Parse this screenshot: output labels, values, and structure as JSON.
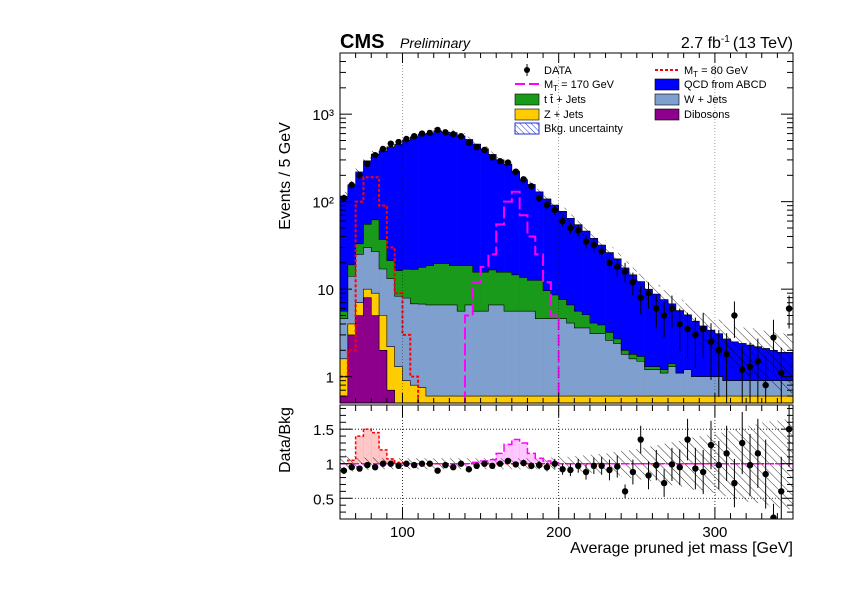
{
  "header": {
    "experiment": "CMS",
    "status": "Preliminary",
    "luminosity_base": "2.7 fb",
    "luminosity_exp": "-1",
    "energy": "(13 TeV)"
  },
  "colors": {
    "qcd": "#0000ff",
    "wjets": "#7f9fcf",
    "ttbar": "#1a9a1a",
    "zjets": "#ffcc00",
    "dibosons": "#8c008c",
    "mt170": "#ff00ff",
    "mt80": "#ff0000",
    "data": "#000000"
  },
  "legend": [
    {
      "key": "data",
      "label": "DATA",
      "style": "marker"
    },
    {
      "key": "mt80",
      "label": "M_T = 80 GeV",
      "style": "dashed"
    },
    {
      "key": "mt170",
      "label": "M_T = 170 GeV",
      "style": "longdash"
    },
    {
      "key": "qcd",
      "label": "QCD from ABCD",
      "style": "fill"
    },
    {
      "key": "ttbar",
      "label": "t t̄ + Jets",
      "style": "fill"
    },
    {
      "key": "wjets",
      "label": "W + Jets",
      "style": "fill"
    },
    {
      "key": "zjets",
      "label": "Z + Jets",
      "style": "fill"
    },
    {
      "key": "dibosons",
      "label": "Dibosons",
      "style": "fill"
    },
    {
      "key": "unc",
      "label": "Bkg. uncertainty",
      "style": "hatch"
    }
  ],
  "chart_data": [
    {
      "type": "histogram",
      "ylabel": "Events / 5 GeV",
      "xlim": [
        60,
        350
      ],
      "ylim": [
        0.5,
        5000
      ],
      "yscale": "log",
      "yticks": [
        1,
        10,
        100,
        1000
      ],
      "ytick_labels": [
        "1",
        "10",
        "10²",
        "10³"
      ],
      "bin_edges": [
        60,
        65,
        70,
        75,
        80,
        85,
        90,
        95,
        100,
        105,
        110,
        115,
        120,
        125,
        130,
        135,
        140,
        145,
        150,
        155,
        160,
        165,
        170,
        175,
        180,
        185,
        190,
        195,
        200,
        205,
        210,
        215,
        220,
        225,
        230,
        235,
        240,
        245,
        250,
        255,
        260,
        265,
        270,
        275,
        280,
        285,
        290,
        295,
        300,
        305,
        310,
        315,
        320,
        325,
        330,
        335,
        340,
        345,
        350
      ],
      "stack": [
        {
          "key": "dibosons",
          "name": "Dibosons",
          "values": [
            0.6,
            3,
            5,
            8,
            5,
            2,
            0.7,
            0.5,
            0.4,
            0.4,
            0.4,
            0.3,
            0.3,
            0.3,
            0.3,
            0.3,
            0.3,
            0.3,
            0.3,
            0.3,
            0.3,
            0.3,
            0.3,
            0.3,
            0.3,
            0.3,
            0.3,
            0.3,
            0.3,
            0.3,
            0.3,
            0.3,
            0.3,
            0.3,
            0.3,
            0.3,
            0.3,
            0.3,
            0.3,
            0.3,
            0.3,
            0.3,
            0.3,
            0.3,
            0.3,
            0.3,
            0.3,
            0.3,
            0.3,
            0.3,
            0.3,
            0.3,
            0.3,
            0.3,
            0.3,
            0.3,
            0.3,
            0.3
          ]
        },
        {
          "key": "zjets",
          "name": "Z + Jets",
          "values": [
            1,
            1,
            2,
            2,
            4,
            3,
            1.5,
            0.8,
            0.5,
            0.4,
            0.35,
            0.3,
            0.3,
            0.3,
            0.3,
            0.3,
            0.3,
            0.3,
            0.3,
            0.3,
            0.3,
            0.3,
            0.3,
            0.3,
            0.3,
            0.3,
            0.3,
            0.3,
            0.3,
            0.3,
            0.3,
            0.3,
            0.3,
            0.3,
            0.3,
            0.3,
            0.3,
            0.3,
            0.3,
            0.3,
            0.3,
            0.3,
            0.3,
            0.3,
            0.3,
            0.3,
            0.3,
            0.3,
            0.3,
            0.3,
            0.3,
            0.3,
            0.3,
            0.3,
            0.3,
            0.3,
            0.3,
            0.3
          ]
        },
        {
          "key": "wjets",
          "name": "W + Jets",
          "values": [
            3,
            10,
            18,
            20,
            18,
            12,
            11,
            7,
            7,
            6,
            6,
            6,
            6,
            6,
            6,
            5,
            6,
            5,
            5,
            6,
            6,
            5,
            5,
            5,
            5,
            4,
            4,
            4,
            4,
            3.5,
            3,
            3,
            2.5,
            2.5,
            2,
            1.8,
            1.2,
            1,
            0.9,
            0.6,
            0.6,
            0.5,
            0.7,
            0.5,
            0.6,
            0.4,
            0.4,
            0.4,
            0.4,
            0.3,
            0.3,
            0.3,
            0.3,
            0.3,
            0.3,
            0.3,
            0.3,
            0.3
          ]
        },
        {
          "key": "ttbar",
          "name": "t t̄ + Jets",
          "values": [
            1,
            5,
            8,
            25,
            35,
            20,
            8,
            8,
            9,
            10,
            11,
            12,
            13,
            13,
            12,
            13,
            12,
            10,
            10,
            10,
            9,
            10,
            9,
            8,
            7,
            8,
            5,
            4,
            3,
            2.5,
            2,
            1.5,
            1,
            0.8,
            0.6,
            0.3,
            0.2,
            0.2,
            0.2,
            0.1,
            0.1,
            0.1,
            0.1,
            0,
            0,
            0,
            0,
            0,
            0,
            0,
            0,
            0,
            0,
            0,
            0,
            0,
            0,
            0
          ]
        },
        {
          "key": "qcd",
          "name": "QCD from ABCD",
          "values": [
            110,
            137,
            186,
            238,
            287,
            343,
            402,
            438,
            485,
            535,
            575,
            585,
            625,
            605,
            597,
            545,
            495,
            440,
            385,
            330,
            285,
            252,
            206,
            165,
            145,
            117,
            98,
            83,
            70,
            58,
            49,
            41,
            34,
            28,
            23,
            19.5,
            15.5,
            12.8,
            10.5,
            8.7,
            7.5,
            6.4,
            5.4,
            4.6,
            3.9,
            3.3,
            2.8,
            2.4,
            2.1,
            1.8,
            1.6,
            1.5,
            1.4,
            1.3,
            1.2,
            1.1,
            1.0,
            1.0
          ]
        }
      ],
      "data": {
        "name": "DATA",
        "values": [
          110,
          155,
          200,
          270,
          340,
          400,
          460,
          480,
          520,
          560,
          600,
          610,
          660,
          620,
          590,
          560,
          470,
          420,
          390,
          320,
          290,
          280,
          220,
          180,
          150,
          110,
          92,
          80,
          60,
          50,
          47,
          35,
          32,
          27,
          20,
          18,
          16,
          12,
          8,
          9,
          6,
          5,
          6,
          4,
          3.5,
          3,
          3.5,
          2.5,
          2,
          1.8,
          5,
          1.2,
          1.3,
          1.5,
          0.8,
          2.8,
          1.1,
          6
        ]
      },
      "signal_mt80": {
        "name": "M_T = 80 GeV",
        "values": [
          1,
          2,
          100,
          190,
          190,
          90,
          30,
          9,
          3,
          1,
          0.3,
          0.3,
          0.3,
          0.3,
          0.3,
          0.3,
          0.3,
          0.3,
          0.3,
          0.3,
          0.3,
          0.3,
          0.3,
          0.3,
          0.3,
          0.3,
          0.3,
          0.3,
          0.3,
          0.3,
          0.3,
          0.3,
          0.3,
          0.3,
          0.3,
          0.3,
          0.3,
          0.3,
          0.3,
          0.3,
          0.3,
          0.3,
          0.3,
          0.3,
          0.3,
          0.3,
          0.3,
          0.3,
          0.3,
          0.3,
          0.3,
          0.3,
          0.3,
          0.3,
          0.3,
          0.3,
          0.3,
          0.3
        ]
      },
      "signal_mt170": {
        "name": "M_T = 170 GeV",
        "values": [
          0.3,
          0.3,
          0.3,
          0.3,
          0.3,
          0.3,
          0.3,
          0.3,
          0.3,
          0.3,
          0.3,
          0.3,
          0.3,
          0.3,
          0.3,
          0.3,
          5,
          12,
          18,
          25,
          55,
          100,
          130,
          70,
          40,
          25,
          12,
          5,
          0.3,
          0.3,
          0.3,
          0.3,
          0.3,
          0.3,
          0.3,
          0.3,
          0.3,
          0.3,
          0.3,
          0.3,
          0.3,
          0.3,
          0.3,
          0.3,
          0.3,
          0.3,
          0.3,
          0.3,
          0.3,
          0.3,
          0.3,
          0.3,
          0.3,
          0.3,
          0.3,
          0.3,
          0.3,
          0.3
        ]
      },
      "uncertainty_rel": [
        0.12,
        0.11,
        0.1,
        0.09,
        0.09,
        0.08,
        0.08,
        0.08,
        0.08,
        0.08,
        0.08,
        0.08,
        0.08,
        0.08,
        0.08,
        0.08,
        0.08,
        0.08,
        0.08,
        0.08,
        0.08,
        0.08,
        0.08,
        0.08,
        0.08,
        0.08,
        0.09,
        0.09,
        0.1,
        0.1,
        0.11,
        0.12,
        0.13,
        0.14,
        0.15,
        0.17,
        0.19,
        0.21,
        0.23,
        0.25,
        0.27,
        0.29,
        0.31,
        0.33,
        0.35,
        0.38,
        0.4,
        0.42,
        0.45,
        0.47,
        0.5,
        0.52,
        0.55,
        0.57,
        0.6,
        0.62,
        0.64,
        0.66
      ]
    },
    {
      "type": "ratio",
      "xlabel": "Average pruned jet mass [GeV]",
      "ylabel": "Data/Bkg",
      "xlim": [
        60,
        350
      ],
      "ylim": [
        0.2,
        1.85
      ],
      "xticks": [
        100,
        200,
        300
      ],
      "yticks": [
        0.5,
        1,
        1.5
      ],
      "ytick_labels": [
        "0.5",
        "1",
        "1.5"
      ],
      "ratio_values": [
        0.9,
        0.95,
        0.93,
        0.98,
        0.95,
        1.0,
        1.0,
        0.97,
        1.0,
        0.98,
        1.0,
        1.0,
        0.9,
        0.98,
        0.95,
        1.0,
        0.92,
        0.97,
        1.0,
        0.97,
        1.0,
        1.04,
        0.99,
        1.01,
        0.97,
        0.98,
        0.95,
        1.0,
        0.92,
        0.91,
        0.97,
        0.88,
        0.97,
        0.97,
        0.91,
        0.96,
        0.6,
        0.88,
        1.35,
        0.83,
        0.98,
        0.72,
        0.99,
        0.95,
        1.35,
        0.93,
        0.88,
        1.27,
        0.98,
        1.15,
        0.72,
        1.3,
        0.98,
        1.15,
        0.85,
        0.22,
        0.6,
        1.5
      ],
      "ratio_errors": [
        0.05,
        0.04,
        0.04,
        0.03,
        0.03,
        0.03,
        0.03,
        0.03,
        0.03,
        0.03,
        0.03,
        0.03,
        0.03,
        0.03,
        0.03,
        0.03,
        0.03,
        0.03,
        0.03,
        0.03,
        0.04,
        0.04,
        0.04,
        0.05,
        0.05,
        0.06,
        0.06,
        0.07,
        0.08,
        0.09,
        0.1,
        0.11,
        0.12,
        0.13,
        0.15,
        0.16,
        0.1,
        0.18,
        0.2,
        0.2,
        0.22,
        0.2,
        0.24,
        0.26,
        0.3,
        0.3,
        0.32,
        0.35,
        0.35,
        0.4,
        0.35,
        0.45,
        0.45,
        0.5,
        0.5,
        0.2,
        0.5,
        0.55
      ],
      "mt80_ratio": [
        1,
        1.05,
        1.4,
        1.5,
        1.45,
        1.2,
        1.07,
        1.02,
        1,
        1,
        1,
        1,
        1,
        1,
        1,
        1,
        1,
        1,
        1,
        1,
        1,
        1,
        1,
        1,
        1,
        1,
        1,
        1,
        1,
        1,
        1,
        1,
        1,
        1,
        1,
        1,
        1,
        1,
        1,
        1,
        1,
        1,
        1,
        1,
        1,
        1,
        1,
        1,
        1,
        1,
        1,
        1,
        1,
        1,
        1,
        1,
        1,
        1
      ],
      "mt170_ratio": [
        1,
        1,
        1,
        1,
        1,
        1,
        1,
        1,
        1,
        1,
        1,
        1,
        1,
        1,
        1,
        1,
        1,
        1.02,
        1.04,
        1.06,
        1.15,
        1.28,
        1.35,
        1.3,
        1.15,
        1.08,
        1.04,
        1.01,
        1,
        1,
        1,
        1,
        1,
        1,
        1,
        1,
        1,
        1,
        1,
        1,
        1,
        1,
        1,
        1,
        1,
        1,
        1,
        1,
        1,
        1,
        1,
        1,
        1,
        1,
        1,
        1,
        1,
        1
      ]
    }
  ]
}
